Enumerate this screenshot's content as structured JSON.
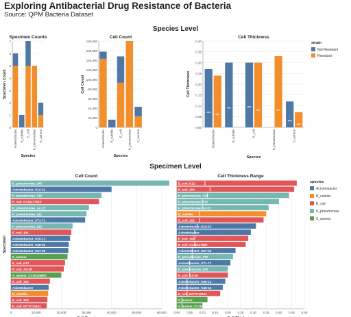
{
  "page": {
    "title": "Exploring Antibacterial Drug Resistance of Bacteria",
    "subtitle": "Source: QPM Bacteria Dataset",
    "section_species": "Species Level",
    "section_specimen": "Specimen Level"
  },
  "colors": {
    "not_resistant": "#4e79a7",
    "resistant": "#f28e2b",
    "Acinetobacter": "#4e79a7",
    "B_subtilis": "#f28e2b",
    "E_coli": "#e15759",
    "K_pneumoniae": "#76b7b2",
    "S_aureus": "#59a14f"
  },
  "chart_data": [
    {
      "id": "specimen_counts",
      "type": "bar",
      "stacked": true,
      "title": "Specimen Counts",
      "xlabel": "Species",
      "ylabel": "Specimen Count",
      "categories": [
        "Acinetobacter",
        "B_subtilis",
        "E_coli",
        "K_pneumoniae",
        "S_aureus"
      ],
      "series": [
        {
          "name": "Resistant",
          "color_key": "resistant",
          "values": [
            5,
            0,
            5,
            5,
            1
          ]
        },
        {
          "name": "Not Resistant",
          "color_key": "not_resistant",
          "values": [
            1,
            1,
            2,
            0,
            1
          ]
        }
      ],
      "ylim": [
        0,
        7
      ],
      "yticks": [
        0,
        1,
        2,
        3,
        4,
        5,
        6,
        7
      ],
      "grid": true
    },
    {
      "id": "species_cell_count",
      "type": "bar",
      "stacked": true,
      "title": "Cell Count",
      "xlabel": "Species",
      "ylabel": "Cell Count",
      "categories": [
        "Acinetobacter",
        "B_subtilis",
        "E_coli",
        "K_pneumoniae",
        "S_aureus"
      ],
      "series": [
        {
          "name": "Resistant",
          "color_key": "resistant",
          "values": [
            143000,
            0,
            93000,
            180000,
            23000
          ]
        },
        {
          "name": "Not Resistant",
          "color_key": "not_resistant",
          "values": [
            15000,
            16000,
            55000,
            0,
            20000
          ]
        }
      ],
      "ylim": [
        0,
        180000
      ],
      "yticks": [
        0,
        20000,
        40000,
        60000,
        80000,
        100000,
        120000,
        140000,
        160000,
        180000
      ],
      "ytick_labels": [
        "0",
        "20,000",
        "40,000",
        "60,000",
        "80,000",
        "100,000",
        "120,000",
        "140,000",
        "160,000",
        "180,000"
      ],
      "grid": true
    },
    {
      "id": "species_cell_thickness",
      "type": "bar",
      "grouped": true,
      "title": "Cell Thickness",
      "xlabel": "Species",
      "ylabel": "Cell Thickness",
      "categories": [
        "Acinetobacter",
        "B_subtilis",
        "E_coli",
        "K_pneumoniae",
        "S_aureus"
      ],
      "series": [
        {
          "name": "Not Resistant",
          "color_key": "not_resistant",
          "values": [
            0.27,
            0.3,
            0.3,
            null,
            0.12
          ],
          "ticks": [
            0.07,
            0.09,
            0.095,
            null,
            0.03
          ]
        },
        {
          "name": "Resistant",
          "color_key": "resistant",
          "values": [
            0.24,
            null,
            0.3,
            0.33,
            0.07
          ],
          "ticks": [
            0.06,
            null,
            0.08,
            0.08,
            0.015
          ]
        }
      ],
      "ylim": [
        0,
        0.4
      ],
      "yticks": [
        0,
        0.05,
        0.1,
        0.15,
        0.2,
        0.25,
        0.3,
        0.35,
        0.4
      ],
      "ytick_labels": [
        "0.00",
        "0.05",
        "0.10",
        "0.15",
        "0.20",
        "0.25",
        "0.30",
        "0.35",
        "0.40"
      ],
      "legend": {
        "title": "strain",
        "position": "right",
        "items": [
          "Not Resistant",
          "Resistant"
        ]
      },
      "grid": true
    },
    {
      "id": "specimen_cell_count",
      "type": "bar",
      "orientation": "horizontal",
      "title": "Cell Count",
      "xlabel": "Cell Count",
      "ylabel": "Specimen",
      "xlim": [
        0,
        60000
      ],
      "xticks": [
        0,
        10000,
        20000,
        30000,
        40000,
        50000,
        60000
      ],
      "xtick_labels": [
        "0",
        "10,000",
        "20,000",
        "30,000",
        "40,000",
        "50,000",
        "60,000"
      ],
      "bars": [
        {
          "label": "K_pneumoniae_240",
          "species": "K_pneumoniae",
          "value": 63000
        },
        {
          "label": "Acinetobacter_K12-21",
          "species": "Acinetobacter",
          "value": 40000
        },
        {
          "label": "K_pneumoniae_210",
          "species": "K_pneumoniae",
          "value": 36000
        },
        {
          "label": "E_coli_CCUG17620",
          "species": "E_coli",
          "value": 35000
        },
        {
          "label": "K_pneumoniae_A2-23",
          "species": "K_pneumoniae",
          "value": 31000
        },
        {
          "label": "K_pneumoniae_211",
          "species": "K_pneumoniae",
          "value": 30000
        },
        {
          "label": "Acinetobacter_K71-71",
          "species": "Acinetobacter",
          "value": 29500
        },
        {
          "label": "K_pneumoniae_212",
          "species": "K_pneumoniae",
          "value": 24500
        },
        {
          "label": "E_coli_101",
          "species": "E_coli",
          "value": 24000
        },
        {
          "label": "Acinetobacter_K55-13",
          "species": "Acinetobacter",
          "value": 23500
        },
        {
          "label": "Acinetobacter_K48-42",
          "species": "Acinetobacter",
          "value": 23000
        },
        {
          "label": "Acinetobacter_K57-06",
          "species": "Acinetobacter",
          "value": 22800
        },
        {
          "label": "S_aureus",
          "species": "S_aureus",
          "value": 22500
        },
        {
          "label": "E_coli_K12",
          "species": "E_coli",
          "value": 21500
        },
        {
          "label": "E_coli_A2-39",
          "species": "E_coli",
          "value": 21000
        },
        {
          "label": "S_aureus_CCUG35600",
          "species": "S_aureus",
          "value": 20000
        },
        {
          "label": "E_coli_102",
          "species": "E_coli",
          "value": 15500
        },
        {
          "label": "Acinetobacter",
          "species": "Acinetobacter",
          "value": 15000
        },
        {
          "label": "B_subtilis",
          "species": "B_subtilis",
          "value": 14800
        },
        {
          "label": "E_coli_104",
          "species": "E_coli",
          "value": 14500
        },
        {
          "label": "E_coli_NCTC13441",
          "species": "E_coli",
          "value": 14200
        }
      ]
    },
    {
      "id": "specimen_cell_thickness_range",
      "type": "bar",
      "orientation": "horizontal",
      "title": "Cell Thickness Range",
      "xlabel": "Cell Thickness",
      "ylabel": "",
      "xlim": [
        0,
        0.5
      ],
      "xticks": [
        0,
        0.05,
        0.1,
        0.15,
        0.2,
        0.25,
        0.3,
        0.35,
        0.4,
        0.45,
        0.5
      ],
      "xtick_labels": [
        "0.00",
        "0.05",
        "0.10",
        "0.15",
        "0.20",
        "0.25",
        "0.30",
        "0.35",
        "0.40",
        "0.45",
        "0.50"
      ],
      "bars": [
        {
          "label": "E_coli_K12",
          "species": "E_coli",
          "value": 0.47,
          "tick": 0.11
        },
        {
          "label": "E_coli_104",
          "species": "E_coli",
          "value": 0.46,
          "tick": 0.13
        },
        {
          "label": "K_pneumoniae_211",
          "species": "K_pneumoniae",
          "value": 0.44,
          "tick": 0.12
        },
        {
          "label": "K_pneumoniae_212",
          "species": "K_pneumoniae",
          "value": 0.4,
          "tick": 0.1
        },
        {
          "label": "K_pneumoniae_A2-23",
          "species": "K_pneumoniae",
          "value": 0.36,
          "tick": 0.1
        },
        {
          "label": "B_subtilis",
          "species": "B_subtilis",
          "value": 0.35,
          "tick": 0.09
        },
        {
          "label": "E_coli_102",
          "species": "E_coli",
          "value": 0.34,
          "tick": 0.09
        },
        {
          "label": "Acinetobacter_K12-21",
          "species": "Acinetobacter",
          "value": 0.31,
          "tick": 0.08
        },
        {
          "label": "Acinetobacter",
          "species": "Acinetobacter",
          "value": 0.29,
          "tick": 0.07
        },
        {
          "label": "E_coli_101",
          "species": "E_coli",
          "value": 0.28,
          "tick": 0.07
        },
        {
          "label": "E_coli_CCUG17620",
          "species": "E_coli",
          "value": 0.27,
          "tick": 0.07
        },
        {
          "label": "Acinetobacter_K57-06",
          "species": "Acinetobacter",
          "value": 0.23,
          "tick": 0.06
        },
        {
          "label": "K_pneumoniae_210",
          "species": "K_pneumoniae",
          "value": 0.22,
          "tick": 0.06
        },
        {
          "label": "Acinetobacter_K71-71",
          "species": "Acinetobacter",
          "value": 0.21,
          "tick": 0.05
        },
        {
          "label": "K_pneumoniae_240",
          "species": "K_pneumoniae",
          "value": 0.2,
          "tick": 0.05
        },
        {
          "label": "E_coli_A2-39",
          "species": "E_coli",
          "value": 0.2,
          "tick": 0.05
        },
        {
          "label": "Acinetobacter_K55-13",
          "species": "Acinetobacter",
          "value": 0.19,
          "tick": 0.04
        },
        {
          "label": "Acinetobacter_K48-42",
          "species": "Acinetobacter",
          "value": 0.18,
          "tick": 0.04
        },
        {
          "label": "E_coli_NCTC13441",
          "species": "E_coli",
          "value": 0.17,
          "tick": 0.04
        },
        {
          "label": "S_aureus",
          "species": "S_aureus",
          "value": 0.12,
          "tick": 0.02
        },
        {
          "label": "S_aureus_CCUG35600",
          "species": "S_aureus",
          "value": 0.1,
          "tick": 0.02
        }
      ],
      "legend": {
        "title": "species",
        "position": "right",
        "items": [
          "Acinetobacter",
          "B_subtilis",
          "E_coli",
          "K_pneumoniae",
          "S_aureus"
        ]
      }
    }
  ]
}
